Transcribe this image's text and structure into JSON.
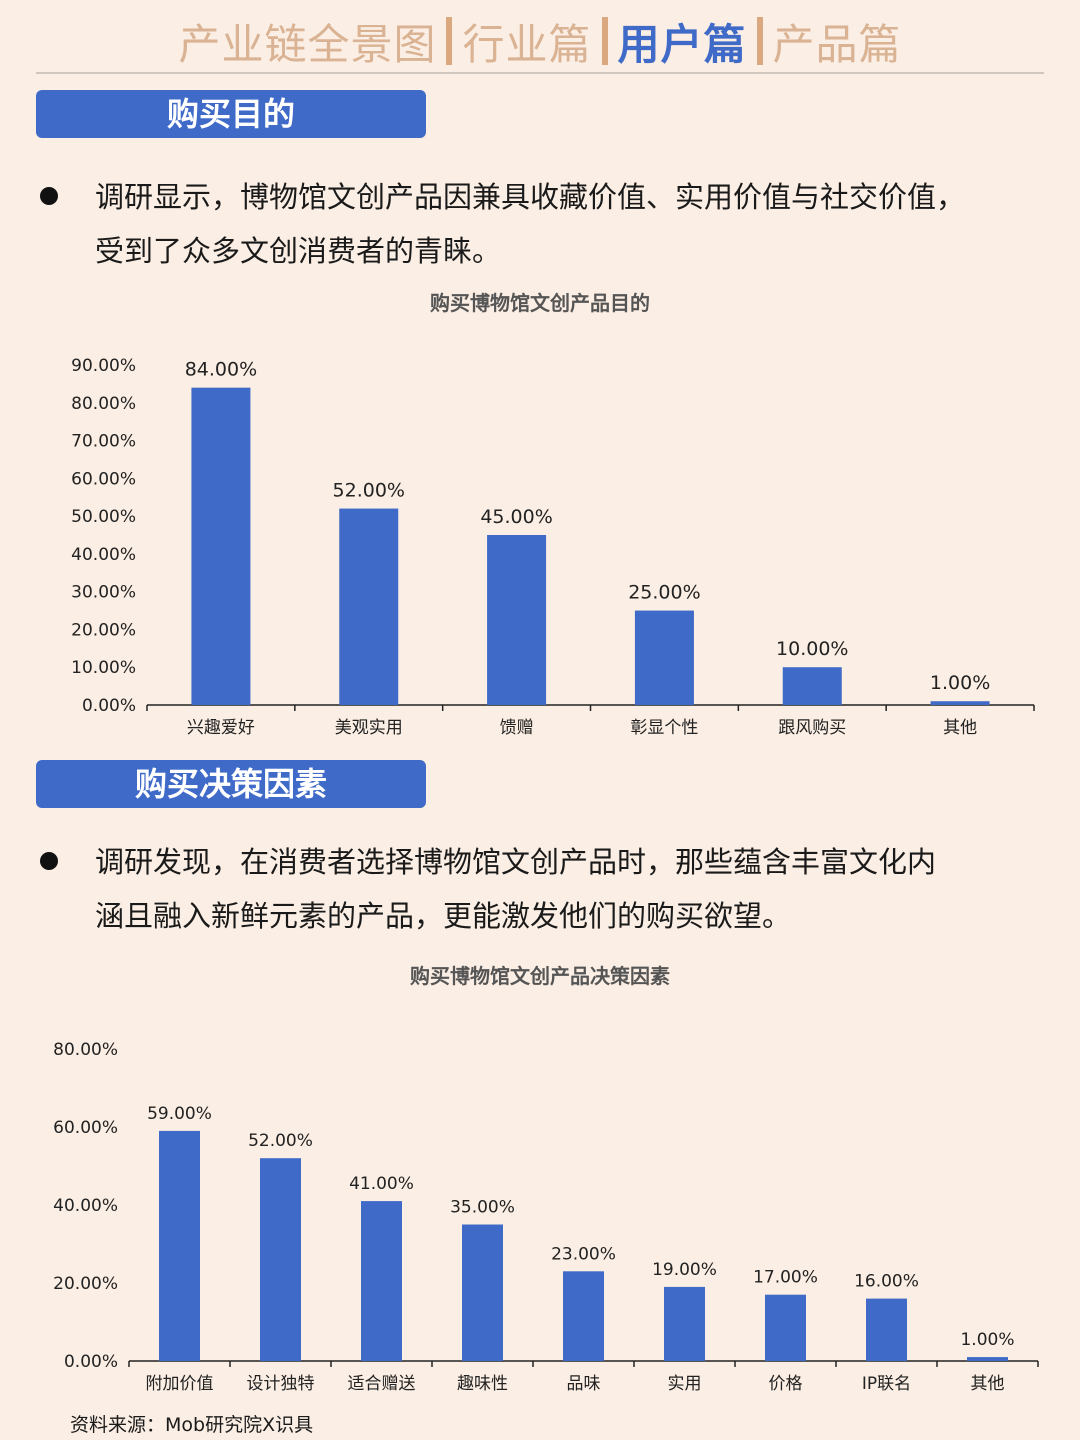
{
  "nav": {
    "tabs": [
      {
        "label": "产业链全景图",
        "active": false
      },
      {
        "label": "行业篇",
        "active": false
      },
      {
        "label": "用户篇",
        "active": true
      },
      {
        "label": "产品篇",
        "active": false
      }
    ]
  },
  "section1": {
    "label": "购买目的",
    "paragraph_line1": "调研显示，博物馆文创产品因兼具收藏价值、实用价值与社交价值，",
    "paragraph_line2": "受到了众多文创消费者的青睐。"
  },
  "section2": {
    "label": "购买决策因素",
    "paragraph_line1": "调研发现，在消费者选择博物馆文创产品时，那些蕴含丰富文化内",
    "paragraph_line2": "涵且融入新鲜元素的产品，更能激发他们的购买欲望。"
  },
  "colors": {
    "accent": "#3f6ac8",
    "nav_inactive": "#d9b393",
    "background": "#fbeee4"
  },
  "chart_data": [
    {
      "type": "bar",
      "title": "购买博物馆文创产品目的",
      "categories": [
        "兴趣爱好",
        "美观实用",
        "馈赠",
        "彰显个性",
        "跟风购买",
        "其他"
      ],
      "values": [
        84,
        52,
        45,
        25,
        10,
        1
      ],
      "value_labels": [
        "84.00%",
        "52.00%",
        "45.00%",
        "25.00%",
        "10.00%",
        "1.00%"
      ],
      "yticks": [
        "0.00%",
        "10.00%",
        "20.00%",
        "30.00%",
        "40.00%",
        "50.00%",
        "60.00%",
        "70.00%",
        "80.00%",
        "90.00%"
      ],
      "ylim": [
        0,
        90
      ],
      "grid": false,
      "color": "#3f6ac8"
    },
    {
      "type": "bar",
      "title": "购买博物馆文创产品决策因素",
      "categories": [
        "附加价值",
        "设计独特",
        "适合赠送",
        "趣味性",
        "品味",
        "实用",
        "价格",
        "IP联名",
        "其他"
      ],
      "values": [
        59,
        52,
        41,
        35,
        23,
        19,
        17,
        16,
        1
      ],
      "value_labels": [
        "59.00%",
        "52.00%",
        "41.00%",
        "35.00%",
        "23.00%",
        "19.00%",
        "17.00%",
        "16.00%",
        "1.00%"
      ],
      "yticks": [
        "0.00%",
        "20.00%",
        "40.00%",
        "60.00%",
        "80.00%"
      ],
      "ylim": [
        0,
        80
      ],
      "grid": false,
      "color": "#3f6ac8"
    }
  ],
  "source": "资料来源：Mob研究院X识具"
}
